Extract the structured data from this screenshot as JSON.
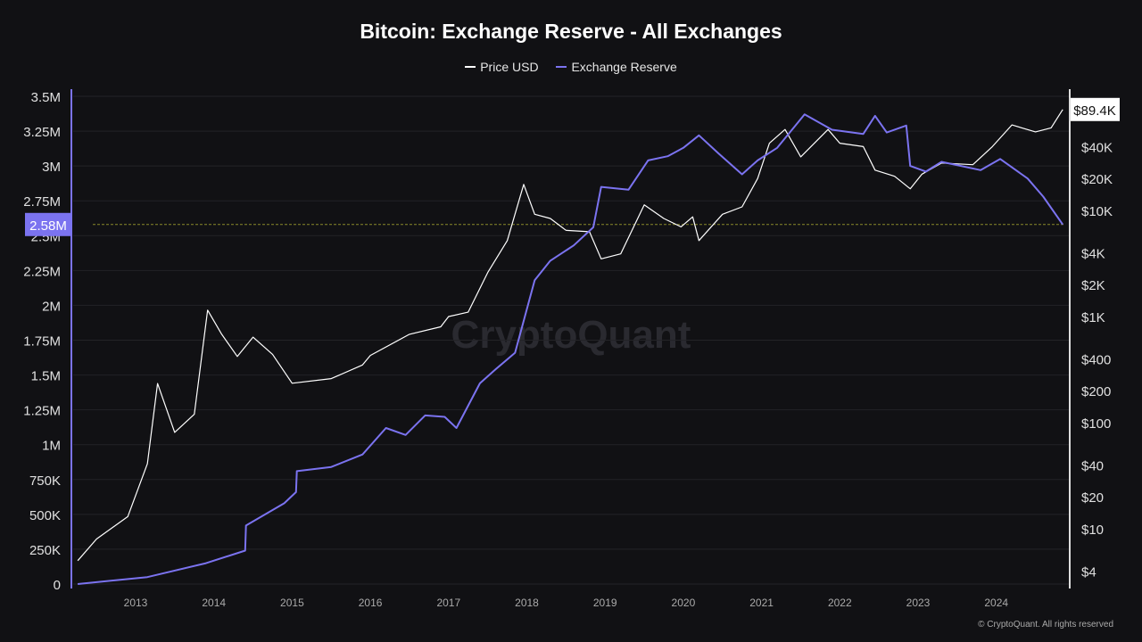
{
  "chart_data": {
    "type": "line",
    "title": "Bitcoin: Exchange Reserve - All Exchanges",
    "legend_position": "top",
    "grid": true,
    "colors": {
      "price": "#ffffff",
      "reserve": "#7b73f0",
      "background": "#111114",
      "ref_line": "#8a8a2a"
    },
    "x_ticks": [
      "2013",
      "2014",
      "2015",
      "2016",
      "2017",
      "2018",
      "2019",
      "2020",
      "2021",
      "2022",
      "2023",
      "2024"
    ],
    "y_left": {
      "ticks": [
        "0",
        "250K",
        "500K",
        "750K",
        "1M",
        "1.25M",
        "1.5M",
        "1.75M",
        "2M",
        "2.25M",
        "2.5M",
        "2.75M",
        "3M",
        "3.25M",
        "3.5M"
      ],
      "range": [
        0,
        3500000
      ],
      "current_label": "2.58M",
      "current_value": 2580000
    },
    "y_right": {
      "scale": "log",
      "ticks": [
        "$4",
        "$10",
        "$20",
        "$40",
        "$100",
        "$200",
        "$400",
        "$1K",
        "$2K",
        "$4K",
        "$10K",
        "$20K",
        "$40K"
      ],
      "tick_values": [
        4,
        10,
        20,
        40,
        100,
        200,
        400,
        1000,
        2000,
        4000,
        10000,
        20000,
        40000
      ],
      "current_label": "$89.4K",
      "current_value": 89400
    },
    "series": [
      {
        "name": "Price USD",
        "axis": "right",
        "x": [
          2012.26,
          2012.5,
          2012.9,
          2013.15,
          2013.28,
          2013.5,
          2013.75,
          2013.92,
          2014.1,
          2014.3,
          2014.5,
          2014.75,
          2015.0,
          2015.5,
          2015.9,
          2016.0,
          2016.5,
          2016.9,
          2017.0,
          2017.25,
          2017.5,
          2017.75,
          2017.96,
          2018.1,
          2018.3,
          2018.5,
          2018.8,
          2018.95,
          2019.2,
          2019.5,
          2019.75,
          2019.97,
          2020.12,
          2020.2,
          2020.5,
          2020.75,
          2020.95,
          2021.1,
          2021.3,
          2021.5,
          2021.85,
          2022.0,
          2022.3,
          2022.45,
          2022.7,
          2022.9,
          2023.05,
          2023.3,
          2023.7,
          2023.95,
          2024.2,
          2024.5,
          2024.7,
          2024.85
        ],
        "y": [
          5,
          8,
          13,
          41,
          234,
          81,
          120,
          1150,
          680,
          420,
          640,
          440,
          235,
          260,
          350,
          430,
          680,
          800,
          1000,
          1100,
          2600,
          5200,
          17600,
          9200,
          8400,
          6500,
          6300,
          3500,
          3900,
          11300,
          8400,
          7000,
          8700,
          5200,
          9200,
          10800,
          20000,
          43000,
          58000,
          32000,
          58000,
          43000,
          40000,
          24000,
          21000,
          16000,
          22000,
          28000,
          27000,
          40000,
          64000,
          55000,
          60000,
          89400
        ]
      },
      {
        "name": "Exchange Reserve",
        "axis": "left",
        "x": [
          2012.26,
          2013.15,
          2013.9,
          2014.4,
          2014.41,
          2014.9,
          2015.05,
          2015.06,
          2015.5,
          2015.9,
          2016.2,
          2016.45,
          2016.7,
          2016.95,
          2017.1,
          2017.4,
          2017.6,
          2017.85,
          2018.1,
          2018.3,
          2018.6,
          2018.85,
          2018.95,
          2019.3,
          2019.55,
          2019.8,
          2020.0,
          2020.2,
          2020.45,
          2020.75,
          2020.95,
          2021.2,
          2021.55,
          2021.9,
          2022.3,
          2022.45,
          2022.6,
          2022.85,
          2022.9,
          2023.1,
          2023.3,
          2023.8,
          2024.05,
          2024.4,
          2024.6,
          2024.85
        ],
        "y": [
          0,
          50000,
          150000,
          240000,
          420000,
          580000,
          660000,
          810000,
          840000,
          930000,
          1120000,
          1070000,
          1210000,
          1200000,
          1120000,
          1440000,
          1540000,
          1660000,
          2180000,
          2320000,
          2430000,
          2560000,
          2850000,
          2830000,
          3040000,
          3070000,
          3130000,
          3220000,
          3090000,
          2940000,
          3040000,
          3130000,
          3370000,
          3260000,
          3230000,
          3360000,
          3240000,
          3290000,
          3000000,
          2960000,
          3030000,
          2970000,
          3050000,
          2910000,
          2780000,
          2580000
        ]
      }
    ],
    "watermark": "CryptoQuant",
    "footer": "© CryptoQuant. All rights reserved"
  }
}
